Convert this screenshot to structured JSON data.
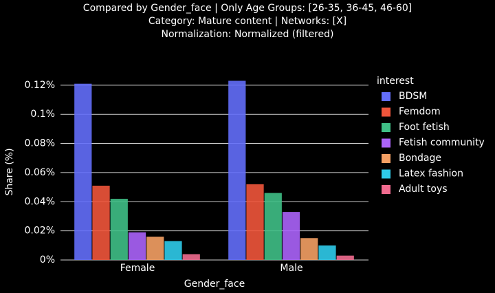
{
  "chart_data": {
    "type": "bar",
    "title": [
      "Compared by Gender_face | Only Age Groups: [26-35, 36-45, 46-60]",
      "Category: Mature content | Networks: [X]",
      "Normalization: Normalized (filtered)"
    ],
    "x_label": "Gender_face",
    "y_label": "Share (%)",
    "legend_title": "interest",
    "legend_position": "right",
    "categories": [
      "Female",
      "Male"
    ],
    "series": [
      {
        "name": "BDSM",
        "color": "#636efa",
        "values": [
          0.121,
          0.123
        ]
      },
      {
        "name": "Femdom",
        "color": "#ef553b",
        "values": [
          0.051,
          0.052
        ]
      },
      {
        "name": "Foot fetish",
        "color": "#3fbf86",
        "values": [
          0.042,
          0.046
        ]
      },
      {
        "name": "Fetish community",
        "color": "#ab63fa",
        "values": [
          0.019,
          0.033
        ]
      },
      {
        "name": "Bondage",
        "color": "#f4a064",
        "values": [
          0.016,
          0.015
        ]
      },
      {
        "name": "Latex fashion",
        "color": "#2fcbea",
        "values": [
          0.013,
          0.01
        ]
      },
      {
        "name": "Adult toys",
        "color": "#f06b8f",
        "values": [
          0.004,
          0.003
        ]
      }
    ],
    "ylim": [
      0,
      0.127
    ],
    "yticks": [
      {
        "value": 0,
        "label": "0%"
      },
      {
        "value": 0.02,
        "label": "0.02%"
      },
      {
        "value": 0.04,
        "label": "0.04%"
      },
      {
        "value": 0.06,
        "label": "0.06%"
      },
      {
        "value": 0.08,
        "label": "0.08%"
      },
      {
        "value": 0.1,
        "label": "0.1%"
      },
      {
        "value": 0.12,
        "label": "0.12%"
      }
    ],
    "grid": true
  }
}
